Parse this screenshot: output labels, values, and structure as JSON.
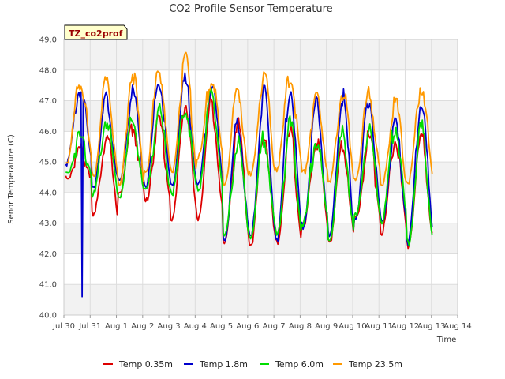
{
  "chart_data": {
    "type": "line",
    "title": "CO2 Profile Sensor Temperature",
    "xlabel": "Time",
    "ylabel": "Senor Temperature (C)",
    "annotation": "TZ_co2prof",
    "x_ticks": [
      "Jul 30",
      "Jul 31",
      "Aug 1",
      "Aug 2",
      "Aug 3",
      "Aug 4",
      "Aug 5",
      "Aug 6",
      "Aug 7",
      "Aug 8",
      "Aug 9",
      "Aug 10",
      "Aug 11",
      "Aug 12",
      "Aug 13",
      "Aug 14"
    ],
    "y_ticks": [
      "40.0",
      "41.0",
      "42.0",
      "43.0",
      "44.0",
      "45.0",
      "46.0",
      "47.0",
      "48.0",
      "49.0"
    ],
    "xlim": [
      0,
      15
    ],
    "ylim": [
      40,
      49
    ],
    "grid": true,
    "legend_position": "bottom",
    "series": [
      {
        "name": "Temp 0.35m",
        "color": "#dd0000",
        "min": [
          44.5,
          43.2,
          44.0,
          43.7,
          43.1,
          43.2,
          42.3,
          42.3,
          42.3,
          42.8,
          42.4,
          43.1,
          42.7,
          42.3
        ],
        "max": [
          45.3,
          45.8,
          46.1,
          46.3,
          46.9,
          46.9,
          46.3,
          46.0,
          45.9,
          45.7,
          45.6,
          45.8,
          45.7,
          45.8
        ]
      },
      {
        "name": "Temp 1.8m",
        "color": "#0000cc",
        "min": [
          45.0,
          44.2,
          44.3,
          44.2,
          44.2,
          44.2,
          42.5,
          42.5,
          42.5,
          42.9,
          42.5,
          43.2,
          43.0,
          42.4
        ],
        "max": [
          47.4,
          47.0,
          47.2,
          47.6,
          47.6,
          47.6,
          46.2,
          47.2,
          47.4,
          46.8,
          47.1,
          47.0,
          46.1,
          47.0
        ]
      },
      {
        "name": "Temp 6.0m",
        "color": "#00dd00",
        "min": [
          44.6,
          43.9,
          43.9,
          44.0,
          44.0,
          44.1,
          42.5,
          42.6,
          42.6,
          43.0,
          42.5,
          43.2,
          43.1,
          42.3
        ],
        "max": [
          45.8,
          46.4,
          46.3,
          46.6,
          46.8,
          47.1,
          45.6,
          45.8,
          46.2,
          45.7,
          45.9,
          46.0,
          46.2,
          46.1
        ]
      },
      {
        "name": "Temp 23.5m",
        "color": "#ff9900",
        "min": [
          45.0,
          44.5,
          44.2,
          44.7,
          44.6,
          45.1,
          44.3,
          44.5,
          44.8,
          44.6,
          44.3,
          44.5,
          44.2,
          44.3
        ],
        "max": [
          47.7,
          47.6,
          47.9,
          48.0,
          48.3,
          47.7,
          47.3,
          47.8,
          47.8,
          47.0,
          47.3,
          47.2,
          46.9,
          47.5
        ]
      }
    ],
    "anomaly": {
      "series_index": 1,
      "x": 0.7,
      "y": 40.6
    }
  }
}
